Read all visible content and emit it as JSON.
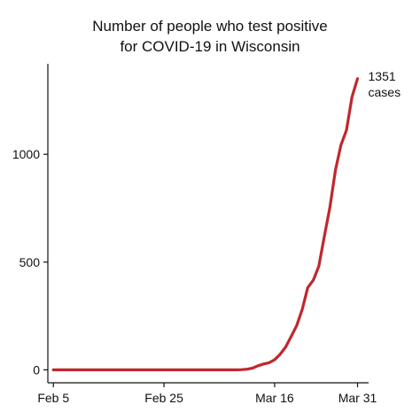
{
  "chart_data": {
    "type": "line",
    "title_line1": "Number of people who test positive",
    "title_line2": "for COVID-19 in Wisconsin",
    "xlabel": "",
    "ylabel": "",
    "x_tick_labels": [
      "Feb 5",
      "Feb 25",
      "Mar 16",
      "Mar 31"
    ],
    "x_tick_days": [
      0,
      20,
      40,
      55
    ],
    "y_ticks": [
      0,
      500,
      1000
    ],
    "xlim_days": [
      -1,
      57
    ],
    "ylim": [
      -60,
      1420
    ],
    "grid": false,
    "line_color": "#c0272d",
    "annotation": {
      "value_text": "1351",
      "unit_text": "cases"
    },
    "series": [
      {
        "x": [
          "2020-02-05",
          "2020-02-15",
          "2020-02-25",
          "2020-03-05",
          "2020-03-09",
          "2020-03-10",
          "2020-03-11",
          "2020-03-12",
          "2020-03-13",
          "2020-03-14",
          "2020-03-15",
          "2020-03-16",
          "2020-03-17",
          "2020-03-18",
          "2020-03-19",
          "2020-03-20",
          "2020-03-21",
          "2020-03-22",
          "2020-03-23",
          "2020-03-24",
          "2020-03-25",
          "2020-03-26",
          "2020-03-27",
          "2020-03-28",
          "2020-03-29",
          "2020-03-30",
          "2020-03-31"
        ],
        "x_days": [
          0,
          10,
          20,
          29,
          33,
          34,
          35,
          36,
          37,
          38,
          39,
          40,
          41,
          42,
          43,
          44,
          45,
          46,
          47,
          48,
          49,
          50,
          51,
          52,
          53,
          54,
          55
        ],
        "values": [
          0,
          0,
          0,
          0,
          0,
          1,
          3,
          8,
          19,
          27,
          33,
          47,
          72,
          106,
          155,
          206,
          281,
          381,
          416,
          481,
          621,
          754,
          927,
          1043,
          1112,
          1267,
          1351
        ]
      }
    ]
  }
}
